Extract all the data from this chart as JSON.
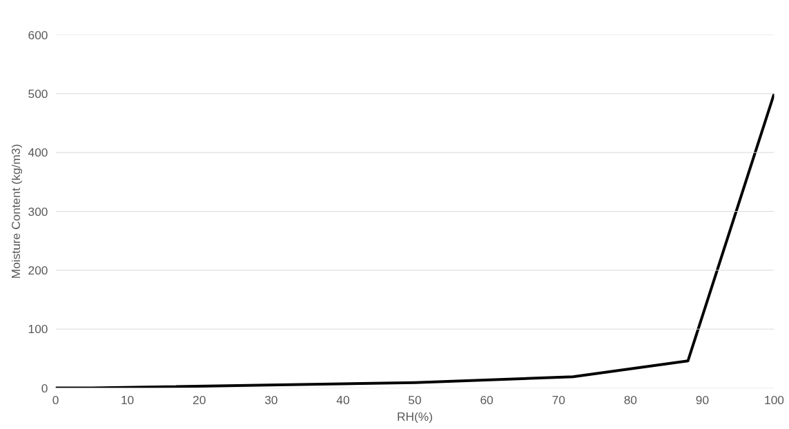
{
  "chart_data": {
    "type": "line",
    "xlabel": "RH(%)",
    "ylabel": "Moisture Content (kg/m3)",
    "x": [
      0,
      5,
      50,
      72,
      88,
      100
    ],
    "series": [
      {
        "color": "#000000",
        "values": [
          0,
          0,
          9,
          19,
          46,
          500
        ]
      }
    ],
    "xlim": [
      0,
      100
    ],
    "xticks": [
      0,
      10,
      20,
      30,
      40,
      50,
      60,
      70,
      80,
      90,
      100
    ],
    "ylim": [
      0,
      600
    ],
    "yticks": [
      0,
      100,
      200,
      300,
      400,
      500,
      600
    ],
    "grid": "y",
    "marker": "none",
    "line_style": "solid"
  }
}
